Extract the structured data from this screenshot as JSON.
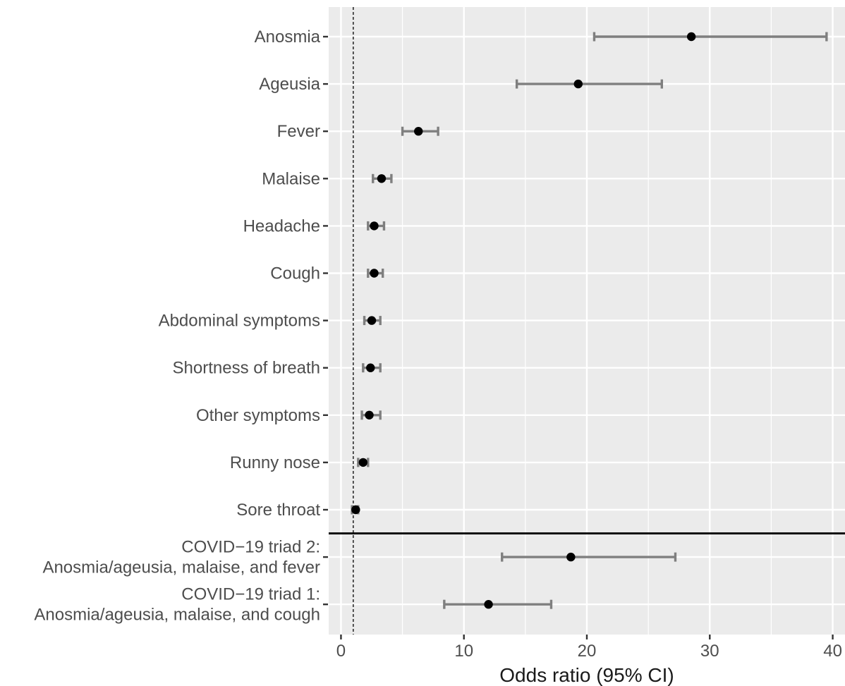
{
  "chart_data": {
    "type": "scatter",
    "subtype": "forest-plot",
    "title": "",
    "xlabel": "Odds ratio (95% CI)",
    "ylabel": "",
    "xlim": [
      -1,
      41
    ],
    "xticks": [
      0,
      10,
      20,
      30,
      40
    ],
    "reference_line_x": 1,
    "grid": true,
    "colors": {
      "panel_background": "#ebebeb",
      "gridline": "#ffffff",
      "errorbar": "#7f7f7f",
      "point": "#000000",
      "reference_line": "#000000",
      "separator_line": "#000000"
    },
    "rows": [
      {
        "label": [
          "Anosmia"
        ],
        "or": 28.5,
        "lower": 20.6,
        "upper": 39.5
      },
      {
        "label": [
          "Ageusia"
        ],
        "or": 19.3,
        "lower": 14.3,
        "upper": 26.1
      },
      {
        "label": [
          "Fever"
        ],
        "or": 6.3,
        "lower": 5.0,
        "upper": 7.9
      },
      {
        "label": [
          "Malaise"
        ],
        "or": 3.3,
        "lower": 2.6,
        "upper": 4.1
      },
      {
        "label": [
          "Headache"
        ],
        "or": 2.7,
        "lower": 2.2,
        "upper": 3.5
      },
      {
        "label": [
          "Cough"
        ],
        "or": 2.7,
        "lower": 2.2,
        "upper": 3.4
      },
      {
        "label": [
          "Abdominal symptoms"
        ],
        "or": 2.5,
        "lower": 1.9,
        "upper": 3.2
      },
      {
        "label": [
          "Shortness of breath"
        ],
        "or": 2.4,
        "lower": 1.8,
        "upper": 3.2
      },
      {
        "label": [
          "Other symptoms"
        ],
        "or": 2.3,
        "lower": 1.7,
        "upper": 3.2
      },
      {
        "label": [
          "Runny nose"
        ],
        "or": 1.8,
        "lower": 1.4,
        "upper": 2.2
      },
      {
        "label": [
          "Sore throat"
        ],
        "or": 1.2,
        "lower": 0.9,
        "upper": 1.4
      },
      {
        "label": [
          "COVID−19 triad 2:",
          "Anosmia/ageusia, malaise, and fever"
        ],
        "or": 18.7,
        "lower": 13.1,
        "upper": 27.2
      },
      {
        "label": [
          "COVID−19 triad 1:",
          "Anosmia/ageusia, malaise, and cough"
        ],
        "or": 12.0,
        "lower": 8.4,
        "upper": 17.1
      }
    ],
    "separator_after_row": 11
  }
}
